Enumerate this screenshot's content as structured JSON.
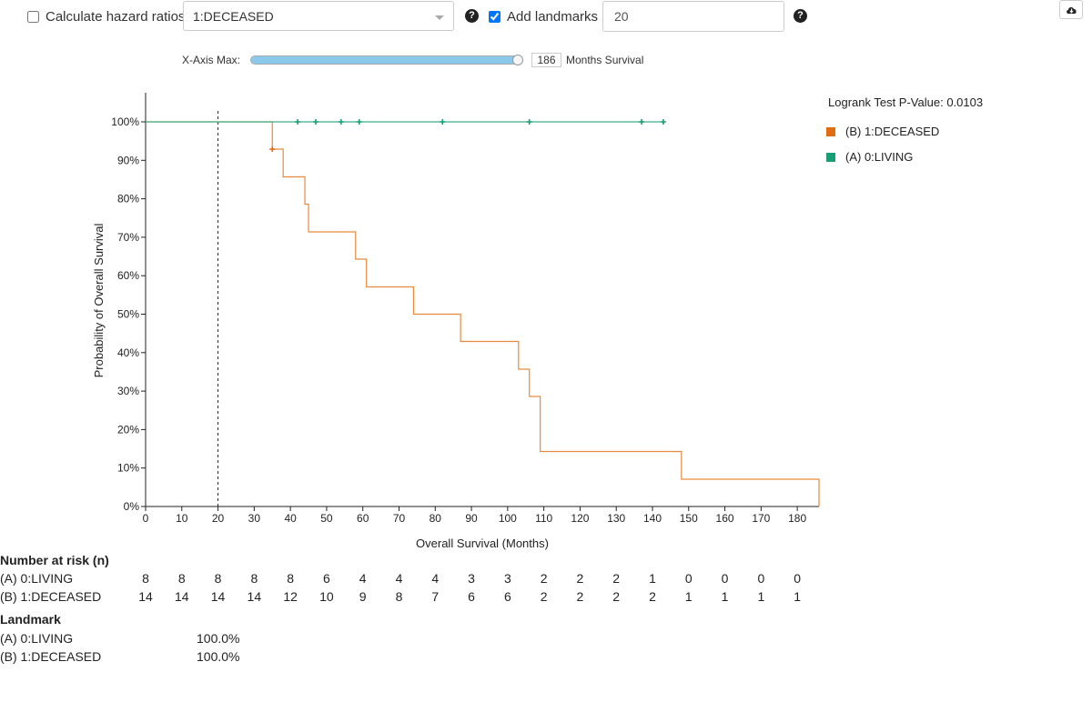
{
  "controls": {
    "hazard_label": "Calculate hazard ratios",
    "hazard_checked": false,
    "group_select_value": "1:DECEASED",
    "landmarks_label": "Add landmarks",
    "landmarks_checked": true,
    "landmark_value": "20",
    "help_glyph": "?"
  },
  "slider": {
    "label": "X-Axis Max:",
    "value": "186",
    "unit": "Months Survival",
    "fraction": 1.0
  },
  "chart_data": {
    "type": "line",
    "xlabel": "Overall Survival (Months)",
    "ylabel": "Probability of Overall Survival",
    "xlim": [
      0,
      186
    ],
    "ylim": [
      0,
      100
    ],
    "xticks": [
      0,
      10,
      20,
      30,
      40,
      50,
      60,
      70,
      80,
      90,
      100,
      110,
      120,
      130,
      140,
      150,
      160,
      170,
      180
    ],
    "yticks": [
      0,
      10,
      20,
      30,
      40,
      50,
      60,
      70,
      80,
      90,
      100
    ],
    "ytick_suffix": "%",
    "landmark_x": 20,
    "pvalue_text": "Logrank Test P-Value: 0.0103",
    "legend_position": "top-right",
    "series": [
      {
        "name": "(B) 1:DECEASED",
        "color": "#e06c14",
        "line_color": "#e88a3e",
        "steps": [
          [
            0,
            100
          ],
          [
            35,
            92.9
          ],
          [
            38,
            85.7
          ],
          [
            44,
            78.6
          ],
          [
            45,
            71.4
          ],
          [
            58,
            64.3
          ],
          [
            61,
            57.1
          ],
          [
            74,
            50.0
          ],
          [
            87,
            42.9
          ],
          [
            103,
            35.7
          ],
          [
            106,
            28.6
          ],
          [
            109,
            14.3
          ],
          [
            148,
            7.1
          ],
          [
            186,
            0
          ]
        ],
        "censored": [
          [
            35,
            92.9
          ]
        ]
      },
      {
        "name": "(A) 0:LIVING",
        "color": "#1a9e76",
        "line_color": "#3fae8c",
        "steps": [
          [
            0,
            100
          ],
          [
            143,
            100
          ]
        ],
        "censored": [
          [
            42,
            100
          ],
          [
            47,
            100
          ],
          [
            54,
            100
          ],
          [
            59,
            100
          ],
          [
            82,
            100
          ],
          [
            106,
            100
          ],
          [
            137,
            100
          ],
          [
            143,
            100
          ]
        ]
      }
    ]
  },
  "risk_table": {
    "title": "Number at risk (n)",
    "timepoints": [
      0,
      10,
      20,
      30,
      40,
      50,
      60,
      70,
      80,
      90,
      100,
      110,
      120,
      130,
      140,
      150,
      160,
      170,
      180
    ],
    "rows": [
      {
        "label": "(A) 0:LIVING",
        "values": [
          "8",
          "8",
          "8",
          "8",
          "8",
          "6",
          "4",
          "4",
          "4",
          "3",
          "3",
          "2",
          "2",
          "2",
          "1",
          "0",
          "0",
          "0",
          "0"
        ]
      },
      {
        "label": "(B) 1:DECEASED",
        "values": [
          "14",
          "14",
          "14",
          "14",
          "12",
          "10",
          "9",
          "8",
          "7",
          "6",
          "6",
          "2",
          "2",
          "2",
          "2",
          "1",
          "1",
          "1",
          "1"
        ]
      }
    ]
  },
  "landmark_table": {
    "title": "Landmark",
    "rows": [
      {
        "label": "(A) 0:LIVING",
        "value": "100.0%"
      },
      {
        "label": "(B) 1:DECEASED",
        "value": "100.0%"
      }
    ]
  }
}
